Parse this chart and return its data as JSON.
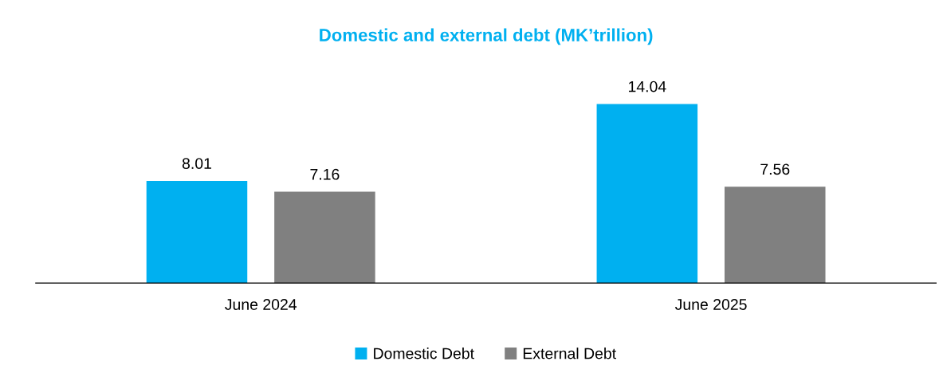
{
  "chart_data": {
    "type": "bar",
    "title": "Domestic and external debt (MK’trillion)",
    "categories": [
      "June 2024",
      "June 2025"
    ],
    "series": [
      {
        "name": "Domestic Debt",
        "color": "#00b0f0",
        "values": [
          8.01,
          14.04
        ]
      },
      {
        "name": "External Debt",
        "color": "#808080",
        "values": [
          7.16,
          7.56
        ]
      }
    ],
    "data_labels": true,
    "legend": "bottom",
    "grid": false,
    "tick_labels": "x"
  }
}
